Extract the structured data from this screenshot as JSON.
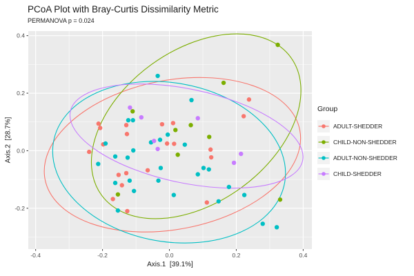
{
  "title": "PCoA Plot with Bray-Curtis Dissimilarity Metric",
  "subtitle": "PERMANOVA p = 0.024",
  "legend": {
    "title": "Group",
    "items": [
      {
        "label": "ADULT-SHEDDER",
        "color": "#F8766D"
      },
      {
        "label": "CHILD-NON-SHEDDER",
        "color": "#7CAE00"
      },
      {
        "label": "ADULT-NON-SHEDDER",
        "color": "#00BFC4"
      },
      {
        "label": "CHILD-SHEDDER",
        "color": "#C77CFF"
      }
    ]
  },
  "chart_data": {
    "type": "scatter",
    "title": "PCoA Plot with Bray-Curtis Dissimilarity Metric",
    "subtitle": "PERMANOVA p = 0.024",
    "xlabel": "Axis.1  [39.1%]",
    "ylabel": "Axis.2  [28.7%]",
    "xlim": [
      -0.422,
      0.426
    ],
    "ylim": [
      -0.342,
      0.416
    ],
    "x_ticks": {
      "values": [
        -0.4,
        -0.2,
        0.0,
        0.2,
        0.4
      ],
      "labels": [
        "-0.4",
        "-0.2",
        "0.0",
        "0.2",
        "0.4"
      ]
    },
    "y_ticks": {
      "values": [
        0.4,
        0.2,
        0.0,
        -0.2
      ],
      "labels": [
        "0.4",
        "0.2",
        "0.0",
        "-0.2"
      ]
    },
    "x_minor": [
      -0.3,
      -0.1,
      0.1,
      0.3
    ],
    "y_minor": [
      0.3,
      0.1,
      -0.1,
      -0.3
    ],
    "panel_bg": "#EBEBEB",
    "grid_color": "#FFFFFF",
    "legend_position": "right",
    "series": [
      {
        "name": "ADULT-SHEDDER",
        "color": "#F8766D",
        "points": [
          [
            -0.212,
            0.094
          ],
          [
            -0.207,
            0.079
          ],
          [
            -0.129,
            0.089
          ],
          [
            -0.127,
            0.058
          ],
          [
            -0.022,
            0.092
          ],
          [
            0.011,
            0.096
          ],
          [
            -0.007,
            0.025
          ],
          [
            0.014,
            0.024
          ],
          [
            -0.198,
            0.022
          ],
          [
            0.123,
            0.004
          ],
          [
            0.125,
            -0.023
          ],
          [
            0.238,
            0.178
          ],
          [
            0.222,
            0.12
          ],
          [
            -0.152,
            -0.084
          ],
          [
            -0.129,
            -0.078
          ],
          [
            -0.142,
            -0.12
          ],
          [
            -0.169,
            -0.168
          ],
          [
            -0.126,
            -0.21
          ],
          [
            0.112,
            -0.18
          ],
          [
            -0.065,
            -0.068
          ],
          [
            -0.24,
            -0.004
          ]
        ],
        "ellipse": {
          "cx": 0.009,
          "cy": -0.014,
          "rx": 0.388,
          "ry": 0.259,
          "angle": -11
        }
      },
      {
        "name": "CHILD-NON-SHEDDER",
        "color": "#7CAE00",
        "points": [
          [
            -0.11,
            0.137
          ],
          [
            0.018,
            0.072
          ],
          [
            0.064,
            0.089
          ],
          [
            0.119,
            0.048
          ],
          [
            0.162,
            0.236
          ],
          [
            0.324,
            0.368
          ],
          [
            0.025,
            -0.014
          ],
          [
            -0.154,
            -0.152
          ],
          [
            0.331,
            -0.17
          ]
        ],
        "ellipse": {
          "cx": 0.08,
          "cy": 0.085,
          "rx": 0.35,
          "ry": 0.265,
          "angle": -36
        }
      },
      {
        "name": "ADULT-NON-SHEDDER",
        "color": "#00BFC4",
        "points": [
          [
            -0.191,
            0.025
          ],
          [
            -0.162,
            -0.02
          ],
          [
            -0.125,
            -0.024
          ],
          [
            -0.213,
            -0.046
          ],
          [
            -0.123,
            0.106
          ],
          [
            -0.109,
            0.106
          ],
          [
            -0.035,
            0.26
          ],
          [
            0.066,
            0.176
          ],
          [
            -0.005,
            0.056
          ],
          [
            -0.028,
            0.038
          ],
          [
            0.046,
            0.021
          ],
          [
            -0.108,
            0.001
          ],
          [
            -0.055,
            0.029
          ],
          [
            -0.026,
            -0.06
          ],
          [
            0.102,
            -0.06
          ],
          [
            0.118,
            -0.065
          ],
          [
            0.085,
            -0.082
          ],
          [
            -0.033,
            -0.104
          ],
          [
            -0.119,
            -0.104
          ],
          [
            -0.106,
            -0.14
          ],
          [
            0.013,
            -0.154
          ],
          [
            0.178,
            -0.126
          ],
          [
            0.224,
            -0.154
          ],
          [
            0.147,
            -0.176
          ],
          [
            -0.154,
            -0.208
          ],
          [
            0.279,
            -0.254
          ],
          [
            0.321,
            -0.266
          ],
          [
            -0.162,
            -0.112
          ]
        ],
        "ellipse": {
          "cx": -0.001,
          "cy": -0.04,
          "rx": 0.351,
          "ry": 0.276,
          "angle": 10
        }
      },
      {
        "name": "CHILD-SHEDDER",
        "color": "#C77CFF",
        "points": [
          [
            -0.118,
            0.15
          ],
          [
            -0.084,
            0.116
          ],
          [
            -0.046,
            0.034
          ],
          [
            -0.035,
            0.006
          ],
          [
            0.085,
            0.113
          ],
          [
            0.214,
            -0.011
          ],
          [
            0.193,
            -0.042
          ]
        ],
        "ellipse": {
          "cx": 0.051,
          "cy": 0.051,
          "rx": 0.355,
          "ry": 0.163,
          "angle": 12
        }
      }
    ]
  }
}
